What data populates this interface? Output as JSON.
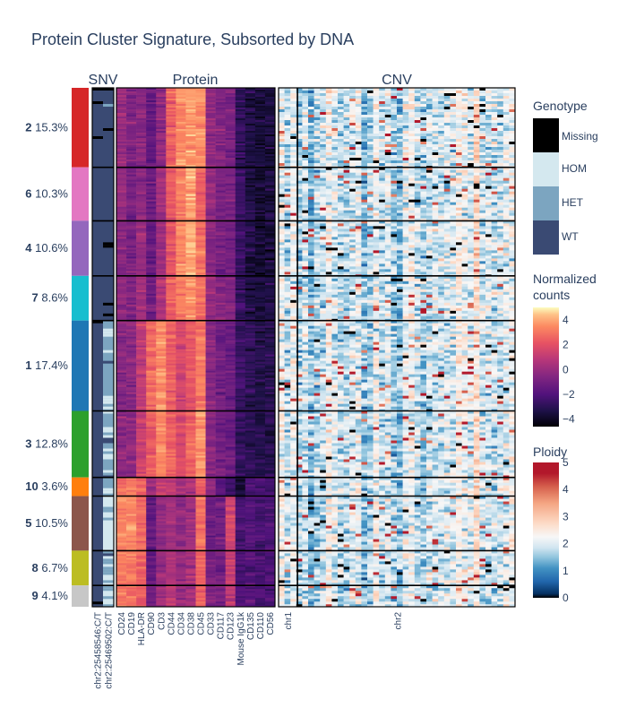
{
  "chart_data": {
    "type": "heatmap",
    "title": "Protein Cluster Signature, Subsorted by DNA",
    "panels": [
      "SNV",
      "Protein",
      "CNV"
    ],
    "clusters": [
      {
        "id": "2",
        "pct": "15.3%",
        "color": "#d62728",
        "fraction": 0.153
      },
      {
        "id": "6",
        "pct": "10.3%",
        "color": "#e377c2",
        "fraction": 0.103
      },
      {
        "id": "4",
        "pct": "10.6%",
        "color": "#9467bd",
        "fraction": 0.106
      },
      {
        "id": "7",
        "pct": "8.6%",
        "color": "#17becf",
        "fraction": 0.086
      },
      {
        "id": "1",
        "pct": "17.4%",
        "color": "#1f77b4",
        "fraction": 0.174
      },
      {
        "id": "3",
        "pct": "12.8%",
        "color": "#2ca02c",
        "fraction": 0.128
      },
      {
        "id": "10",
        "pct": "3.6%",
        "color": "#ff7f0e",
        "fraction": 0.036
      },
      {
        "id": "5",
        "pct": "10.5%",
        "color": "#8c564b",
        "fraction": 0.105
      },
      {
        "id": "8",
        "pct": "6.7%",
        "color": "#bcbd22",
        "fraction": 0.067
      },
      {
        "id": "9",
        "pct": "4.1%",
        "color": "#c7c7c7",
        "fraction": 0.041
      }
    ],
    "snv_columns": [
      "chr2:25458546:C/T",
      "chr2:25469502:C/T"
    ],
    "protein_columns": [
      "CD24",
      "CD19",
      "HLA-DR",
      "CD90",
      "CD3",
      "CD44",
      "CD34",
      "CD38",
      "CD45",
      "CD33",
      "CD117",
      "CD123",
      "Mouse IgG1k",
      "CD135",
      "CD110",
      "CD56"
    ],
    "cnv_columns": [
      "chr1",
      "chr2"
    ],
    "cnv_chr1_fraction": 0.08,
    "protein_cluster_means": {
      "2": [
        0.0,
        -0.7,
        -0.4,
        -1.4,
        -0.3,
        2.5,
        3.4,
        3.8,
        3.4,
        -0.2,
        -0.6,
        -0.8,
        -2.8,
        -3.4,
        -3.6,
        -3.4
      ],
      "6": [
        -0.2,
        -0.9,
        -0.3,
        -1.2,
        0.3,
        2.3,
        3.2,
        3.9,
        2.6,
        -0.3,
        -0.8,
        -0.9,
        -2.7,
        -3.4,
        -3.7,
        -3.5
      ],
      "4": [
        -0.5,
        -0.8,
        0.0,
        -1.3,
        0.2,
        2.0,
        3.5,
        4.0,
        3.0,
        -0.4,
        -0.9,
        -0.9,
        -2.7,
        -3.4,
        -3.7,
        -3.5
      ],
      "7": [
        -0.4,
        -0.6,
        0.3,
        -1.1,
        0.5,
        2.4,
        3.2,
        3.6,
        2.9,
        -0.1,
        -0.6,
        -0.6,
        -2.7,
        -3.3,
        -3.6,
        -3.4
      ],
      "1": [
        -0.6,
        -0.4,
        1.1,
        2.6,
        3.6,
        2.4,
        1.5,
        2.3,
        3.1,
        -0.5,
        -1.1,
        -1.3,
        -2.6,
        -3.0,
        -3.3,
        -3.2
      ],
      "3": [
        -0.3,
        -0.3,
        1.4,
        2.2,
        3.4,
        2.6,
        1.7,
        2.5,
        3.6,
        -0.5,
        -1.0,
        -1.2,
        -2.7,
        -3.0,
        -3.2,
        -3.1
      ],
      "10": [
        2.8,
        3.2,
        2.8,
        0.2,
        1.1,
        1.3,
        0.4,
        0.6,
        2.3,
        -0.2,
        -1.6,
        -2.3,
        -3.6,
        -2.3,
        -2.3,
        -2.3
      ],
      "5": [
        3.4,
        3.6,
        2.7,
        -1.5,
        -0.1,
        0.3,
        -0.3,
        0.1,
        2.9,
        -1.1,
        -1.1,
        1.4,
        -2.3,
        -2.0,
        -2.3,
        -2.2
      ],
      "8": [
        3.2,
        3.0,
        2.4,
        -1.4,
        0.1,
        0.5,
        -0.1,
        0.4,
        2.6,
        -0.9,
        -1.0,
        1.2,
        -2.1,
        -1.9,
        -2.2,
        -2.1
      ],
      "9": [
        3.0,
        2.9,
        2.6,
        -1.0,
        0.4,
        0.9,
        0.1,
        0.3,
        2.4,
        -0.8,
        -0.9,
        0.8,
        -2.0,
        -1.9,
        -2.2,
        -2.0
      ]
    },
    "snv_cluster_genotype": {
      "2": [
        "WT",
        "WT"
      ],
      "6": [
        "WT",
        "WT"
      ],
      "4": [
        "WT",
        "WT"
      ],
      "7": [
        "WT",
        "WT"
      ],
      "1": [
        "WT",
        "HET"
      ],
      "3": [
        "WT",
        "HET"
      ],
      "10": [
        "WT",
        "HET"
      ],
      "5": [
        "WT",
        "HOM"
      ],
      "8": [
        "WT",
        "HOM"
      ],
      "9": [
        "WT",
        "HOM"
      ]
    },
    "cnv_mean_ploidy": 2,
    "genotype_legend": {
      "title": "Genotype",
      "categories": [
        "Missing",
        "HOM",
        "HET",
        "WT"
      ],
      "colors": {
        "Missing": "#000000",
        "HOM": "#d4e8ef",
        "HET": "#7ca5c0",
        "WT": "#3a4a73"
      }
    },
    "counts_legend": {
      "title_line1": "Normalized",
      "title_line2": "counts",
      "range": [
        -4.6,
        5.0
      ],
      "ticks": [
        "4",
        "2",
        "0",
        "−2",
        "−4"
      ],
      "tick_values": [
        4,
        2,
        0,
        -2,
        -4
      ]
    },
    "ploidy_legend": {
      "title": "Ploidy",
      "range": [
        0,
        5
      ],
      "ticks": [
        "5",
        "4",
        "3",
        "2",
        "1",
        "0"
      ],
      "tick_values": [
        5,
        4,
        3,
        2,
        1,
        0
      ]
    }
  }
}
